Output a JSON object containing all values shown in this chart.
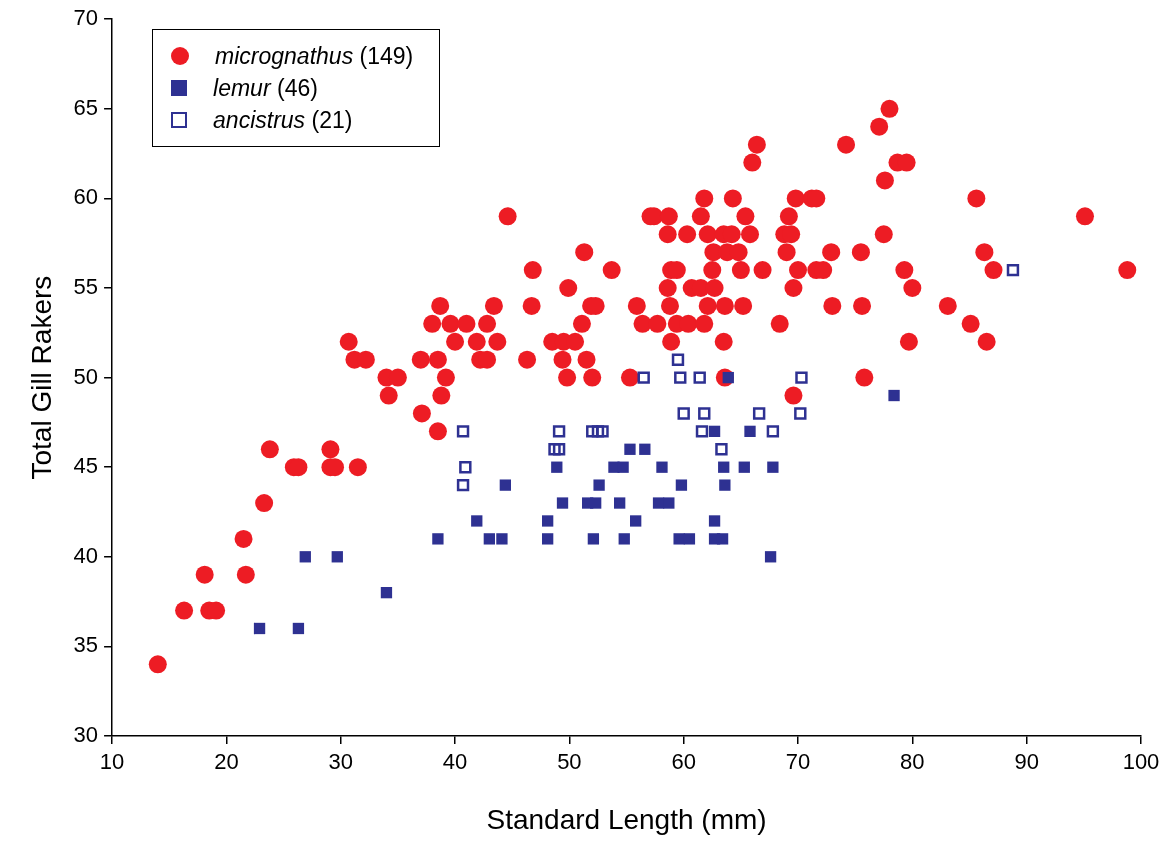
{
  "chart_data": {
    "type": "scatter",
    "xlabel": "Standard Length (mm)",
    "ylabel": "Total Gill Rakers",
    "xlim": [
      10,
      100
    ],
    "xticks": [
      10,
      20,
      30,
      40,
      50,
      60,
      70,
      80,
      90,
      100
    ],
    "ylim": [
      30,
      70
    ],
    "yticks": [
      30,
      35,
      40,
      45,
      50,
      55,
      60,
      65,
      70
    ],
    "grid": false,
    "legend": "top left",
    "series": [
      {
        "name": "micrognathus (149)",
        "color": "#ed1c24",
        "marker": "circle",
        "x": [
          14.0,
          16.3,
          18.5,
          19.1,
          18.1,
          21.7,
          21.5,
          23.3,
          23.8,
          25.9,
          26.3,
          29.1,
          29.5,
          29.1,
          31.5,
          30.7,
          31.2,
          32.2,
          34.0,
          35.0,
          34.2,
          37.1,
          38.5,
          37.0,
          38.5,
          39.2,
          38.8,
          38.0,
          39.6,
          41.0,
          42.8,
          38.7,
          43.4,
          40.0,
          41.9,
          43.7,
          42.2,
          42.8,
          44.6,
          46.8,
          49.9,
          46.7,
          51.9,
          52.3,
          51.1,
          48.5,
          49.5,
          50.5,
          46.3,
          49.4,
          51.5,
          49.8,
          52.0,
          51.3,
          78.0,
          77.1,
          66.4,
          74.2,
          66.0,
          78.7,
          79.5,
          77.6,
          61.8,
          64.3,
          69.8,
          71.2,
          71.6,
          85.6,
          57.1,
          57.4,
          58.7,
          61.5,
          65.4,
          69.2,
          95.1,
          58.6,
          60.3,
          62.1,
          63.5,
          64.2,
          65.8,
          68.8,
          69.4,
          77.5,
          62.6,
          63.8,
          64.8,
          69.0,
          72.9,
          75.5,
          86.3,
          53.7,
          58.9,
          59.4,
          62.5,
          65.0,
          66.9,
          70.0,
          71.6,
          72.2,
          79.3,
          87.1,
          98.8,
          58.6,
          60.7,
          61.5,
          62.7,
          69.6,
          80.0,
          55.9,
          58.8,
          62.1,
          63.6,
          65.2,
          73.0,
          75.6,
          83.1,
          56.4,
          57.7,
          59.4,
          60.4,
          61.8,
          68.4,
          85.1,
          58.9,
          63.5,
          79.7,
          86.5,
          55.3,
          63.6,
          75.8,
          69.6
        ],
        "values": [
          34,
          37,
          37,
          37,
          39,
          39,
          41,
          43,
          46,
          45,
          45,
          45,
          45,
          46,
          45,
          52,
          51,
          51,
          50,
          50,
          49,
          48,
          47,
          51,
          51,
          50,
          49,
          53,
          53,
          53,
          53,
          54,
          54,
          52,
          52,
          52,
          51,
          51,
          59,
          56,
          55,
          54,
          54,
          54,
          53,
          52,
          52,
          52,
          51,
          51,
          51,
          50,
          50,
          57,
          65,
          64,
          63,
          63,
          62,
          62,
          62,
          61,
          60,
          60,
          60,
          60,
          60,
          60,
          59,
          59,
          59,
          59,
          59,
          59,
          59,
          58,
          58,
          58,
          58,
          58,
          58,
          58,
          58,
          58,
          57,
          57,
          57,
          57,
          57,
          57,
          57,
          56,
          56,
          56,
          56,
          56,
          56,
          56,
          56,
          56,
          56,
          56,
          56,
          55,
          55,
          55,
          55,
          55,
          55,
          54,
          54,
          54,
          54,
          54,
          54,
          54,
          54,
          53,
          53,
          53,
          53,
          53,
          53,
          53,
          52,
          52,
          52,
          52,
          50,
          50,
          50,
          49
        ]
      },
      {
        "name": "lemur (46)",
        "color": "#2e3192",
        "marker": "square",
        "x": [
          22.9,
          26.3,
          26.9,
          29.7,
          34.0,
          38.5,
          41.9,
          43.0,
          44.1,
          44.4,
          48.1,
          48.1,
          48.9,
          49.4,
          51.6,
          52.1,
          52.3,
          52.6,
          53.9,
          54.4,
          54.7,
          54.8,
          55.3,
          55.8,
          56.6,
          57.8,
          58.1,
          58.7,
          59.6,
          59.8,
          60.5,
          62.7,
          62.7,
          62.7,
          63.4,
          63.5,
          63.6,
          63.9,
          65.3,
          65.8,
          67.6,
          67.8,
          78.4
        ],
        "values": [
          36,
          36,
          40,
          40,
          38,
          41,
          42,
          41,
          41,
          44,
          42,
          41,
          45,
          43,
          43,
          41,
          43,
          44,
          45,
          43,
          45,
          41,
          46,
          42,
          46,
          43,
          45,
          43,
          41,
          44,
          41,
          42,
          47,
          41,
          41,
          45,
          44,
          50,
          45,
          47,
          40,
          45,
          49
        ]
      },
      {
        "name": "ancistrus (21)",
        "color": "#2e3192",
        "marker": "square-open",
        "x": [
          40.7,
          40.9,
          40.7,
          48.7,
          49.1,
          49.1,
          52.0,
          52.5,
          52.9,
          56.5,
          59.5,
          59.7,
          60.0,
          61.4,
          61.8,
          61.6,
          63.3,
          66.6,
          67.8,
          70.3,
          70.2,
          88.8
        ],
        "values": [
          47,
          45,
          44,
          46,
          46,
          47,
          47,
          47,
          47,
          50,
          51,
          50,
          48,
          50,
          48,
          47,
          46,
          48,
          47,
          50,
          48,
          56
        ]
      }
    ]
  }
}
